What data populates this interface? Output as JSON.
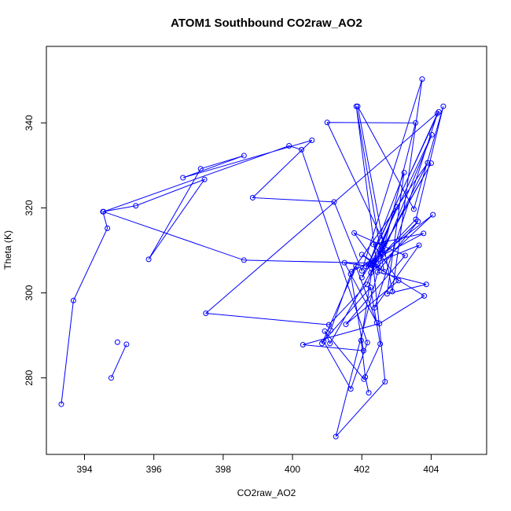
{
  "chart_data": {
    "type": "line",
    "title": "ATOM1 Southbound CO2raw_AO2",
    "xlabel": "CO2raw_AO2",
    "ylabel": "Theta (K)",
    "xlim": [
      392.9,
      405.6
    ],
    "ylim": [
      262,
      358
    ],
    "xticks": [
      394,
      396,
      398,
      400,
      402,
      404
    ],
    "yticks": [
      280,
      300,
      320,
      340
    ],
    "grid": false,
    "legend": "none",
    "series_color": "#0000ff",
    "series": [
      {
        "marker": "open-circle",
        "x": [
          393.33,
          393.68,
          394.66,
          394.53,
          395.48,
          397.46,
          395.85,
          397.35,
          398.6,
          396.84,
          400.56,
          398.85,
          401.2,
          402.0,
          403.74,
          402.88,
          401.88,
          403.5,
          404.35,
          403.56,
          402.6,
          404.02,
          402.27,
          403.8,
          402.51,
          400.3,
          402.05,
          401.68,
          401.1,
          400.85,
          401.83,
          402.43,
          401.5,
          402.5,
          401.78,
          403.25,
          401.54,
          403.06,
          402.33,
          403.78,
          401.71,
          403.9,
          402.26,
          404.05,
          402.12,
          403.65,
          402.37,
          404.18,
          402.2,
          403.22,
          402.73,
          403.86,
          402.45,
          403.62,
          402.3,
          404.0,
          402.28,
          403.0,
          402.15,
          401.05,
          397.5,
          404.22,
          402.0,
          402.65,
          401.0,
          403.55,
          401.25,
          402.67,
          402.32,
          398.6,
          394.55,
          399.9,
          400.26,
          402.16,
          401.68,
          400.9,
          402.25,
          402.53,
          402.06,
          400.93,
          401.08,
          402.42,
          401.84,
          402.64,
          402.0,
          402.33,
          401.98,
          402.1,
          402.2
        ],
        "y": [
          273.8,
          298.2,
          315.2,
          319.1,
          320.5,
          326.7,
          307.9,
          329.2,
          332.3,
          327.1,
          335.9,
          322.4,
          321.4,
          305.2,
          350.3,
          300.3,
          343.9,
          319.7,
          343.9,
          317.3,
          309.1,
          337.2,
          306.9,
          299.3,
          292.8,
          287.8,
          286.4,
          304.4,
          291.2,
          288.1,
          306.3,
          293.0,
          307.1,
          305.9,
          314.1,
          308.8,
          292.6,
          302.9,
          311.4,
          314.0,
          305.0,
          330.6,
          304.7,
          318.4,
          306.2,
          311.2,
          296.5,
          342.2,
          306.8,
          328.3,
          299.8,
          302.0,
          304.9,
          316.8,
          306.4,
          330.5,
          305.8,
          320.2,
          302.0,
          292.5,
          295.2,
          342.6,
          303.6,
          311.6,
          340.1,
          340.0,
          266.2,
          279.1,
          307.0,
          307.7,
          319.1,
          334.6,
          333.7,
          288.3,
          277.4,
          288.6,
          301.3,
          288.0,
          279.7,
          291.0,
          288.1,
          307.2,
          343.9,
          305.0,
          309.0,
          307.3,
          288.8,
          280.2,
          276.5
        ]
      },
      {
        "marker": "open-circle",
        "x": [
          394.77,
          395.21
        ],
        "y": [
          280.0,
          287.9
        ]
      },
      {
        "marker": "open-circle",
        "x": [
          394.95
        ],
        "y": [
          288.4
        ]
      }
    ]
  }
}
